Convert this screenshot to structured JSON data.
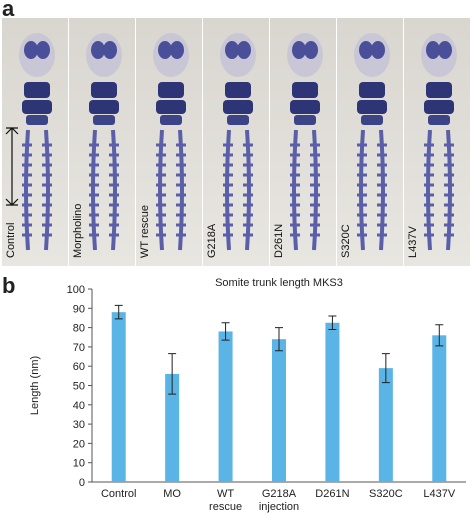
{
  "panel_labels": [
    "a",
    "b"
  ],
  "image_labels": [
    "Control",
    "Morpholino",
    "WT rescue",
    "G218A",
    "D261N",
    "S320C",
    "L437V"
  ],
  "chart_data": {
    "type": "bar",
    "title": "Somite trunk length MKS3",
    "y_label": "Length (nm)",
    "categories": [
      "Control",
      "MO",
      "WT rescue",
      "G218A injection",
      "D261N",
      "S320C",
      "L437V"
    ],
    "values": [
      88,
      56,
      78,
      74,
      82.5,
      59,
      76
    ],
    "errors": [
      3.5,
      10.5,
      4.5,
      6,
      3.5,
      7.5,
      5.5
    ],
    "color": "#5ab4e5",
    "ylim": [
      0,
      100
    ],
    "yticks": [
      0,
      10,
      20,
      30,
      40,
      50,
      60,
      70,
      80,
      90,
      100
    ],
    "grid": false
  }
}
